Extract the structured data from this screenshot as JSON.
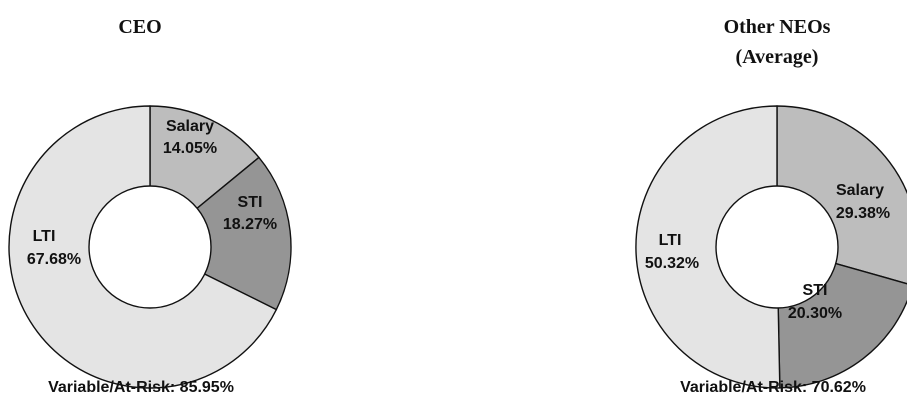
{
  "colors": {
    "light": "#e4e4e4",
    "medium": "#bdbdbd",
    "dark": "#959595",
    "stroke": "#111111",
    "hole": "#ffffff"
  },
  "chart_data": [
    {
      "type": "pie",
      "donut": true,
      "title_lines": [
        "CEO"
      ],
      "footer": "Variable/At-Risk: 85.95%",
      "slices": [
        {
          "name": "Salary",
          "value": 14.05,
          "label_value": "14.05%",
          "color": "#bdbdbd"
        },
        {
          "name": "STI",
          "value": 18.27,
          "label_value": "18.27%",
          "color": "#959595"
        },
        {
          "name": "LTI",
          "value": 67.68,
          "label_value": "67.68%",
          "color": "#e4e4e4"
        }
      ]
    },
    {
      "type": "pie",
      "donut": true,
      "title_lines": [
        "Other NEOs",
        "(Average)"
      ],
      "footer": "Variable/At-Risk: 70.62%",
      "slices": [
        {
          "name": "Salary",
          "value": 29.38,
          "label_value": "29.38%",
          "color": "#bdbdbd"
        },
        {
          "name": "STI",
          "value": 20.3,
          "label_value": "20.30%",
          "color": "#959595"
        },
        {
          "name": "LTI",
          "value": 50.32,
          "label_value": "50.32%",
          "color": "#e4e4e4"
        }
      ]
    }
  ]
}
